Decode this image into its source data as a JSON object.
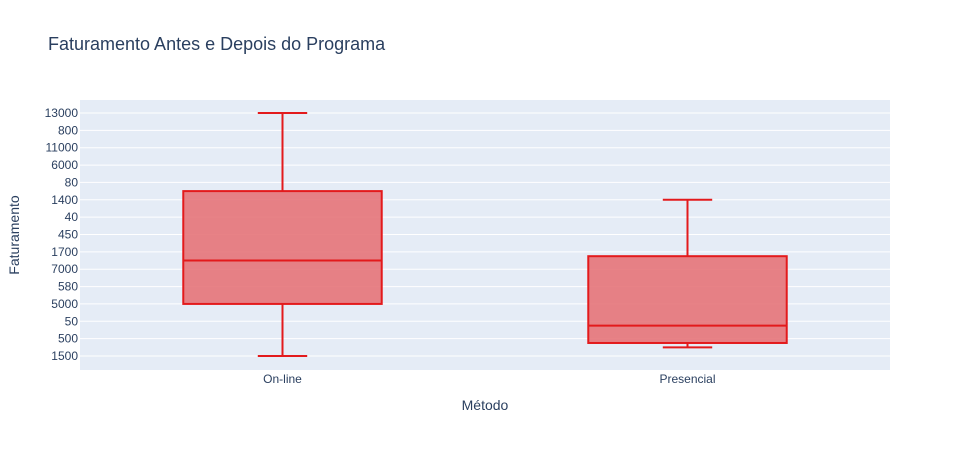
{
  "chart_data": {
    "type": "box",
    "title": "Faturamento Antes e Depois do Programa",
    "xlabel": "Método",
    "ylabel": "Faturamento",
    "y_axis_type": "category",
    "y_categories": [
      "1500",
      "500",
      "50",
      "5000",
      "580",
      "7000",
      "1700",
      "450",
      "40",
      "1400",
      "80",
      "6000",
      "11000",
      "800",
      "13000"
    ],
    "categories": [
      "On-line",
      "Presencial"
    ],
    "boxes": [
      {
        "category": "On-line",
        "min": 0,
        "q1": 3,
        "median": 5.5,
        "q3": 9.5,
        "max": 14
      },
      {
        "category": "Presencial",
        "min": 0.5,
        "q1": 0.75,
        "median": 1.75,
        "q3": 5.75,
        "max": 9
      }
    ],
    "colors": {
      "box_line": "#e31a1c",
      "box_fill": "#e67479",
      "plot_bg": "#e5ecf6",
      "grid": "#ffffff",
      "text": "#2a3f5f"
    },
    "grid": true,
    "legend": "none"
  }
}
